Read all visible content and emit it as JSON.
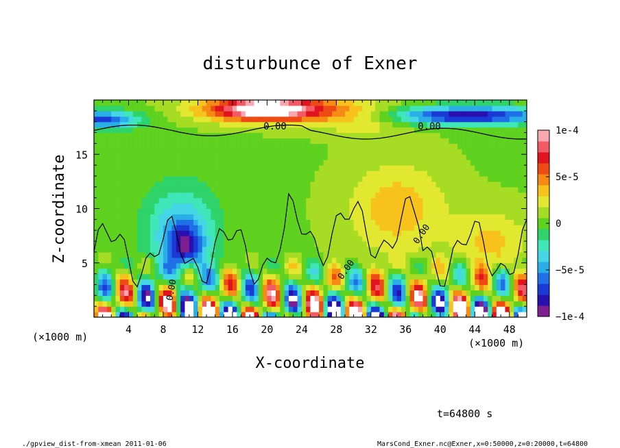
{
  "chart_data": {
    "type": "heatmap",
    "title": "disturbunce of Exner",
    "xlabel": "X-coordinate",
    "ylabel": "Z-coordinate",
    "x_unit": "(×1000 m)",
    "z_unit": "(×1000 m)",
    "xlim": [
      0,
      50
    ],
    "ylim": [
      0,
      20
    ],
    "x_ticks": [
      4,
      8,
      12,
      16,
      20,
      24,
      28,
      32,
      36,
      40,
      44,
      48
    ],
    "y_ticks": [
      5,
      10,
      15
    ],
    "contour_labels": [
      "0.00",
      "0.00",
      "0.00",
      "0.00",
      "0.00"
    ],
    "colorbar": {
      "range": [
        -0.0001,
        0.0001
      ],
      "ticks": [
        {
          "value": 0.0001,
          "label": "1e-4"
        },
        {
          "value": 5e-05,
          "label": "5e-5"
        },
        {
          "value": 0,
          "label": "0"
        },
        {
          "value": -5e-05,
          "label": "−5e-5"
        },
        {
          "value": -0.0001,
          "label": "−1e-4"
        }
      ],
      "colors": [
        "#7f1f8f",
        "#2a0fb0",
        "#1a3ad6",
        "#1f6fe6",
        "#2aaee8",
        "#44d6e6",
        "#3fe6b8",
        "#2ed36a",
        "#5fd11f",
        "#a6dc23",
        "#e2e830",
        "#f7c21c",
        "#f58a14",
        "#ee4a14",
        "#e0141e",
        "#f25a66",
        "#f7a8ae"
      ]
    },
    "time_label": "t=64800 s"
  },
  "footer": {
    "left": "./gpview_dist-from-xmean  2011-01-06",
    "right": "MarsCond_Exner.nc@Exner,x=0:50000,z=0:20000,t=64800"
  }
}
